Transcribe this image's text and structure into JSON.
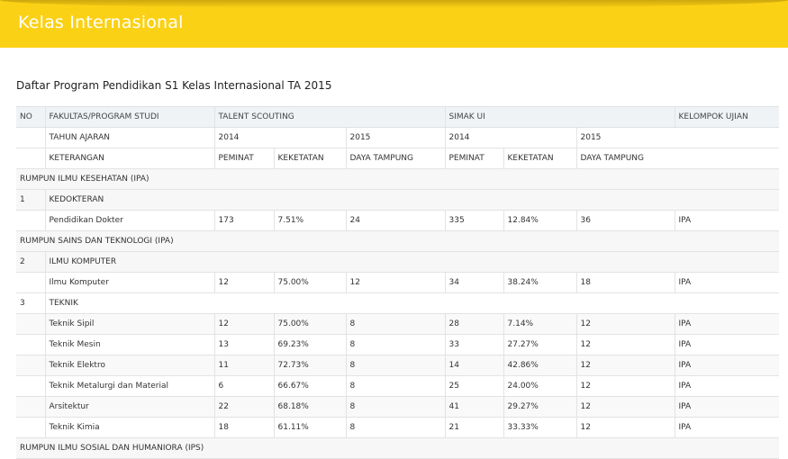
{
  "page_title": "Kelas Internasional",
  "subtitle": "Daftar Program Pendidikan S1 Kelas Internasional TA 2015",
  "header1": {
    "no": "NO",
    "fakultas": "FAKULTAS/PROGRAM STUDI",
    "talent": "TALENT SCOUTING",
    "simak": "SIMAK UI",
    "kelompok": "KELOMPOK UJIAN"
  },
  "header2": {
    "label": "TAHUN AJARAN",
    "ts_y1": "2014",
    "ts_y2": "2015",
    "sm_y1": "2014",
    "sm_y2": "2015"
  },
  "header3": {
    "label": "KETERANGAN",
    "ts_peminat": "PEMINAT",
    "ts_keketatan": "KEKETATAN",
    "ts_daya": "DAYA TAMPUNG",
    "sm_peminat": "PEMINAT",
    "sm_keketatan": "KEKETATAN",
    "sm_daya": "DAYA TAMPUNG"
  },
  "rumpun": [
    "RUMPUN ILMU KESEHATAN (IPA)",
    "RUMPUN SAINS DAN TEKNOLOGI (IPA)",
    "RUMPUN ILMU SOSIAL DAN HUMANIORA (IPS)"
  ],
  "fakultas": [
    {
      "no": "1",
      "name": "KEDOKTERAN"
    },
    {
      "no": "2",
      "name": "ILMU KOMPUTER"
    },
    {
      "no": "3",
      "name": "TEKNIK"
    }
  ],
  "programs": [
    {
      "name": "Pendidikan Dokter",
      "ts_peminat": "173",
      "ts_keketatan": "7.51%",
      "ts_daya": "24",
      "sm_peminat": "335",
      "sm_keketatan": "12.84%",
      "sm_daya": "36",
      "kelompok": "IPA"
    },
    {
      "name": "Ilmu Komputer",
      "ts_peminat": "12",
      "ts_keketatan": "75.00%",
      "ts_daya": "12",
      "sm_peminat": "34",
      "sm_keketatan": "38.24%",
      "sm_daya": "18",
      "kelompok": "IPA"
    },
    {
      "name": "Teknik Sipil",
      "ts_peminat": "12",
      "ts_keketatan": "75.00%",
      "ts_daya": "8",
      "sm_peminat": "28",
      "sm_keketatan": "7.14%",
      "sm_daya": "12",
      "kelompok": "IPA"
    },
    {
      "name": "Teknik Mesin",
      "ts_peminat": "13",
      "ts_keketatan": "69.23%",
      "ts_daya": "8",
      "sm_peminat": "33",
      "sm_keketatan": "27.27%",
      "sm_daya": "12",
      "kelompok": "IPA"
    },
    {
      "name": "Teknik Elektro",
      "ts_peminat": "11",
      "ts_keketatan": "72.73%",
      "ts_daya": "8",
      "sm_peminat": "14",
      "sm_keketatan": "42.86%",
      "sm_daya": "12",
      "kelompok": "IPA"
    },
    {
      "name": "Teknik Metalurgi dan Material",
      "ts_peminat": "6",
      "ts_keketatan": "66.67%",
      "ts_daya": "8",
      "sm_peminat": "25",
      "sm_keketatan": "24.00%",
      "sm_daya": "12",
      "kelompok": "IPA"
    },
    {
      "name": "Arsitektur",
      "ts_peminat": "22",
      "ts_keketatan": "68.18%",
      "ts_daya": "8",
      "sm_peminat": "41",
      "sm_keketatan": "29.27%",
      "sm_daya": "12",
      "kelompok": "IPA"
    },
    {
      "name": "Teknik Kimia",
      "ts_peminat": "18",
      "ts_keketatan": "61.11%",
      "ts_daya": "8",
      "sm_peminat": "21",
      "sm_keketatan": "33.33%",
      "sm_daya": "12",
      "kelompok": "IPA"
    }
  ],
  "colors": {
    "banner": "#fbd115",
    "header_bg": "#eff3f6"
  }
}
